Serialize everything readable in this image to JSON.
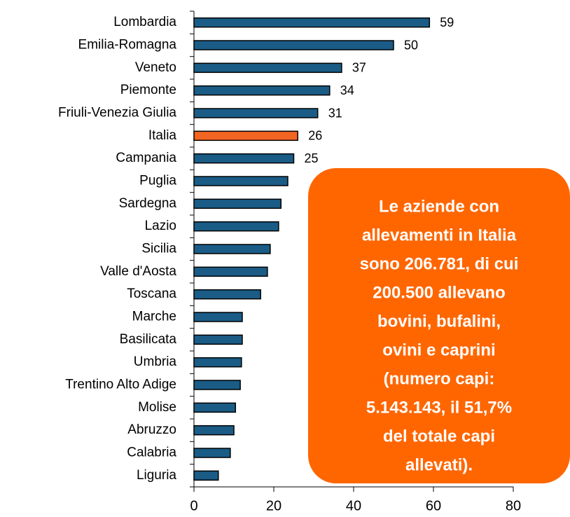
{
  "chart_data": {
    "type": "bar",
    "orientation": "horizontal",
    "categories": [
      "Lombardia",
      "Emilia-Romagna",
      "Veneto",
      "Piemonte",
      "Friuli-Venezia Giulia",
      "Italia",
      "Campania",
      "Puglia",
      "Sardegna",
      "Lazio",
      "Sicilia",
      "Valle d'Aosta",
      "Toscana",
      "Marche",
      "Basilicata",
      "Umbria",
      "Trentino Alto Adige",
      "Molise",
      "Abruzzo",
      "Calabria",
      "Liguria"
    ],
    "values": [
      59,
      50,
      37,
      34,
      31,
      26,
      25,
      23.5,
      21.8,
      21.2,
      19.1,
      18.4,
      16.7,
      12.1,
      12.1,
      11.9,
      11.6,
      10.4,
      10.0,
      9.1,
      6.1
    ],
    "value_labels": [
      "59",
      "50",
      "37",
      "34",
      "31",
      "26",
      "25",
      null,
      null,
      null,
      null,
      null,
      null,
      null,
      null,
      null,
      null,
      null,
      null,
      null,
      null
    ],
    "colors": [
      "#1a5c86",
      "#1a5c86",
      "#1a5c86",
      "#1a5c86",
      "#1a5c86",
      "#f26522",
      "#1a5c86",
      "#1a5c86",
      "#1a5c86",
      "#1a5c86",
      "#1a5c86",
      "#1a5c86",
      "#1a5c86",
      "#1a5c86",
      "#1a5c86",
      "#1a5c86",
      "#1a5c86",
      "#1a5c86",
      "#1a5c86",
      "#1a5c86",
      "#1a5c86"
    ],
    "xlim": [
      0,
      80
    ],
    "xticks": [
      0,
      20,
      40,
      60,
      80
    ],
    "grid": false,
    "annotation": {
      "color": "#ff6600",
      "lines": [
        "Le aziende con",
        "allevamenti in Italia",
        "sono 206.781, di cui",
        "200.500 allevano",
        "bovini, bufalini,",
        "ovini e caprini",
        "(numero capi:",
        "5.143.143, il 51,7%",
        "del totale capi",
        "allevati)."
      ]
    }
  }
}
